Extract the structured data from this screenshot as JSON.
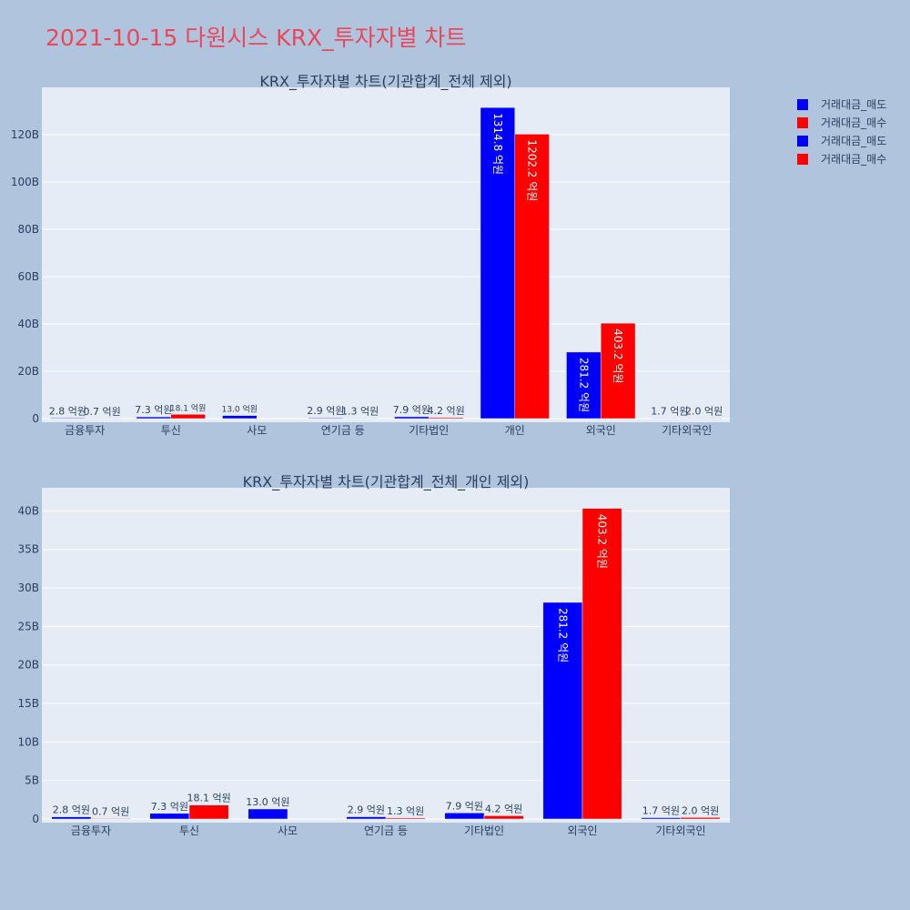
{
  "title": "2021-10-15 다원시스 KRX_투자자별 차트",
  "legend": [
    {
      "label": "거래대금_매도",
      "color": "#0000ff"
    },
    {
      "label": "거래대금_매수",
      "color": "#ff0000"
    },
    {
      "label": "거래대금_매도",
      "color": "#0000ff"
    },
    {
      "label": "거래대금_매수",
      "color": "#ff0000"
    }
  ],
  "chart_data": [
    {
      "type": "bar",
      "title": "KRX_투자자별 차트(기관합계_전체 제외)",
      "categories": [
        "금융투자",
        "투신",
        "사모",
        "연기금 등",
        "기타법인",
        "개인",
        "외국인",
        "기타외국인"
      ],
      "series": [
        {
          "name": "거래대금_매도",
          "color": "#0000ff",
          "values": [
            0.28,
            0.73,
            1.3,
            0.29,
            0.79,
            131.48,
            28.12,
            0.17
          ],
          "labels": [
            "2.8 억원",
            "7.3 억원",
            "13.0 억원",
            "2.9 억원",
            "7.9 억원",
            "1314.8 억원",
            "281.2 억원",
            "1.7 억원"
          ]
        },
        {
          "name": "거래대금_매수",
          "color": "#ff0000",
          "values": [
            0.07,
            1.81,
            0,
            0.13,
            0.42,
            120.22,
            40.32,
            0.2
          ],
          "labels": [
            "0.7 억원",
            "18.1 억원",
            "",
            "1.3 억원",
            "4.2 억원",
            "1202.2 억원",
            "403.2 억원",
            "2.0 억원"
          ]
        }
      ],
      "ylim": [
        0,
        140
      ],
      "yticks": [
        0,
        20,
        40,
        60,
        80,
        100,
        120
      ],
      "ytick_labels": [
        "0",
        "20B",
        "40B",
        "60B",
        "80B",
        "100B",
        "120B"
      ]
    },
    {
      "type": "bar",
      "title": "KRX_투자자별 차트(기관합계_전체_개인 제외)",
      "categories": [
        "금융투자",
        "투신",
        "사모",
        "연기금 등",
        "기타법인",
        "외국인",
        "기타외국인"
      ],
      "series": [
        {
          "name": "거래대금_매도",
          "color": "#0000ff",
          "values": [
            0.28,
            0.73,
            1.3,
            0.29,
            0.79,
            28.12,
            0.17
          ],
          "labels": [
            "2.8 억원",
            "7.3 억원",
            "13.0 억원",
            "2.9 억원",
            "7.9 억원",
            "281.2 억원",
            "1.7 억원"
          ]
        },
        {
          "name": "거래대금_매수",
          "color": "#ff0000",
          "values": [
            0.07,
            1.81,
            0,
            0.13,
            0.42,
            40.32,
            0.2
          ],
          "labels": [
            "0.7 억원",
            "18.1 억원",
            "",
            "1.3 억원",
            "4.2 억원",
            "403.2 억원",
            "2.0 억원"
          ]
        }
      ],
      "ylim": [
        0,
        43
      ],
      "yticks": [
        0,
        5,
        10,
        15,
        20,
        25,
        30,
        35,
        40
      ],
      "ytick_labels": [
        "0",
        "5B",
        "10B",
        "15B",
        "20B",
        "25B",
        "30B",
        "35B",
        "40B"
      ]
    }
  ]
}
